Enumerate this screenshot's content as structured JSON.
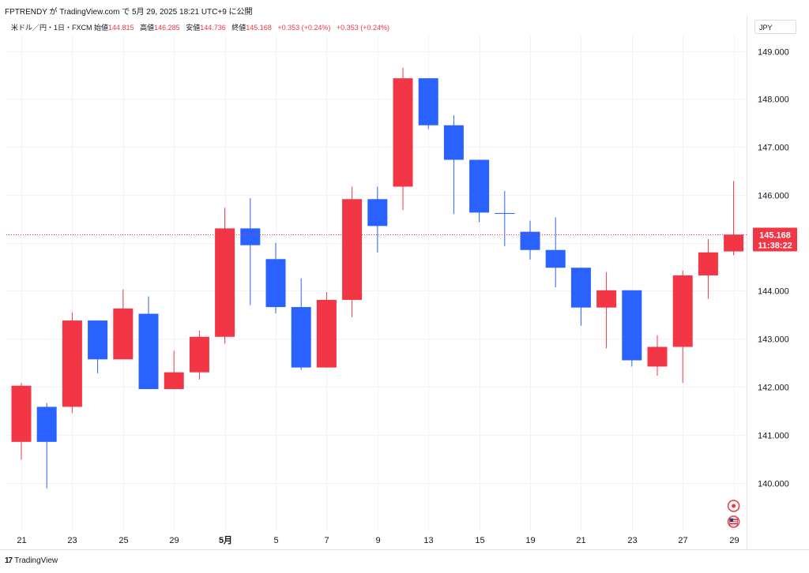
{
  "header": {
    "caption": "FPTRENDY が TradingView.com で 5月 29, 2025 18:21 UTC+9 に公開"
  },
  "legend": {
    "symbol": "米ドル／円・1日・FXCM",
    "open_label": "始値",
    "open": "144.815",
    "high_label": "高値",
    "high": "146.285",
    "low_label": "安値",
    "low": "144.736",
    "close_label": "終値",
    "close": "145.168",
    "change1": "+0.353 (+0.24%)",
    "change2": "+0.353 (+0.24%)"
  },
  "currency": "JPY",
  "footer": {
    "brand_mark": "17",
    "brand": "TradingView"
  },
  "colors": {
    "up": "#f23645",
    "down": "#2962ff",
    "grid": "#f0f3fa",
    "price_line": "#f23645"
  },
  "chart_data": {
    "type": "candlestick",
    "ylim": [
      139.0,
      149.4
    ],
    "yticks": [
      140.0,
      141.0,
      142.0,
      143.0,
      144.0,
      145.0,
      146.0,
      147.0,
      148.0,
      149.0
    ],
    "ytick_labels": [
      "140.000",
      "141.000",
      "142.000",
      "143.000",
      "144.000",
      "145.000",
      "146.000",
      "147.000",
      "148.000",
      "149.000"
    ],
    "last_price": "145.168",
    "countdown": "11:38:22",
    "xtick_labels": [
      {
        "i": 0,
        "label": "21"
      },
      {
        "i": 2,
        "label": "23"
      },
      {
        "i": 4,
        "label": "25"
      },
      {
        "i": 6,
        "label": "29"
      },
      {
        "i": 8,
        "label": "5月",
        "bold": true
      },
      {
        "i": 10,
        "label": "5"
      },
      {
        "i": 12,
        "label": "7"
      },
      {
        "i": 14,
        "label": "9"
      },
      {
        "i": 16,
        "label": "13"
      },
      {
        "i": 18,
        "label": "15"
      },
      {
        "i": 20,
        "label": "19"
      },
      {
        "i": 22,
        "label": "21"
      },
      {
        "i": 24,
        "label": "23"
      },
      {
        "i": 26,
        "label": "27"
      },
      {
        "i": 28,
        "label": "29"
      }
    ],
    "candles": [
      {
        "o": 140.85,
        "h": 142.08,
        "l": 140.48,
        "c": 142.02
      },
      {
        "o": 141.58,
        "h": 141.66,
        "l": 139.88,
        "c": 140.85
      },
      {
        "o": 141.58,
        "h": 143.55,
        "l": 141.45,
        "c": 143.38
      },
      {
        "o": 143.38,
        "h": 143.38,
        "l": 142.28,
        "c": 142.57
      },
      {
        "o": 142.57,
        "h": 144.03,
        "l": 142.57,
        "c": 143.63
      },
      {
        "o": 143.52,
        "h": 143.88,
        "l": 141.95,
        "c": 141.95
      },
      {
        "o": 141.95,
        "h": 142.75,
        "l": 141.95,
        "c": 142.3
      },
      {
        "o": 142.3,
        "h": 143.17,
        "l": 142.15,
        "c": 143.04
      },
      {
        "o": 143.04,
        "h": 145.73,
        "l": 142.9,
        "c": 145.3
      },
      {
        "o": 145.3,
        "h": 145.93,
        "l": 143.7,
        "c": 144.95
      },
      {
        "o": 144.66,
        "h": 145.0,
        "l": 143.53,
        "c": 143.66
      },
      {
        "o": 143.66,
        "h": 144.26,
        "l": 142.35,
        "c": 142.4
      },
      {
        "o": 142.4,
        "h": 143.97,
        "l": 142.4,
        "c": 143.81
      },
      {
        "o": 143.81,
        "h": 146.17,
        "l": 143.45,
        "c": 145.91
      },
      {
        "o": 145.91,
        "h": 146.17,
        "l": 144.8,
        "c": 145.35
      },
      {
        "o": 146.17,
        "h": 148.65,
        "l": 145.68,
        "c": 148.43
      },
      {
        "o": 148.43,
        "h": 148.43,
        "l": 147.37,
        "c": 147.45
      },
      {
        "o": 147.45,
        "h": 147.66,
        "l": 145.6,
        "c": 146.73
      },
      {
        "o": 146.73,
        "h": 146.73,
        "l": 145.43,
        "c": 145.63
      },
      {
        "o": 145.62,
        "h": 146.08,
        "l": 144.93,
        "c": 145.61
      },
      {
        "o": 145.23,
        "h": 145.46,
        "l": 144.65,
        "c": 144.85
      },
      {
        "o": 144.85,
        "h": 145.53,
        "l": 144.07,
        "c": 144.48
      },
      {
        "o": 144.48,
        "h": 144.48,
        "l": 143.27,
        "c": 143.65
      },
      {
        "o": 143.65,
        "h": 144.39,
        "l": 142.8,
        "c": 144.01
      },
      {
        "o": 144.01,
        "h": 144.01,
        "l": 142.42,
        "c": 142.55
      },
      {
        "o": 142.42,
        "h": 143.07,
        "l": 142.23,
        "c": 142.83
      },
      {
        "o": 142.83,
        "h": 144.42,
        "l": 142.08,
        "c": 144.32
      },
      {
        "o": 144.32,
        "h": 145.08,
        "l": 143.83,
        "c": 144.8
      },
      {
        "o": 144.82,
        "h": 146.29,
        "l": 144.74,
        "c": 145.17
      }
    ]
  }
}
